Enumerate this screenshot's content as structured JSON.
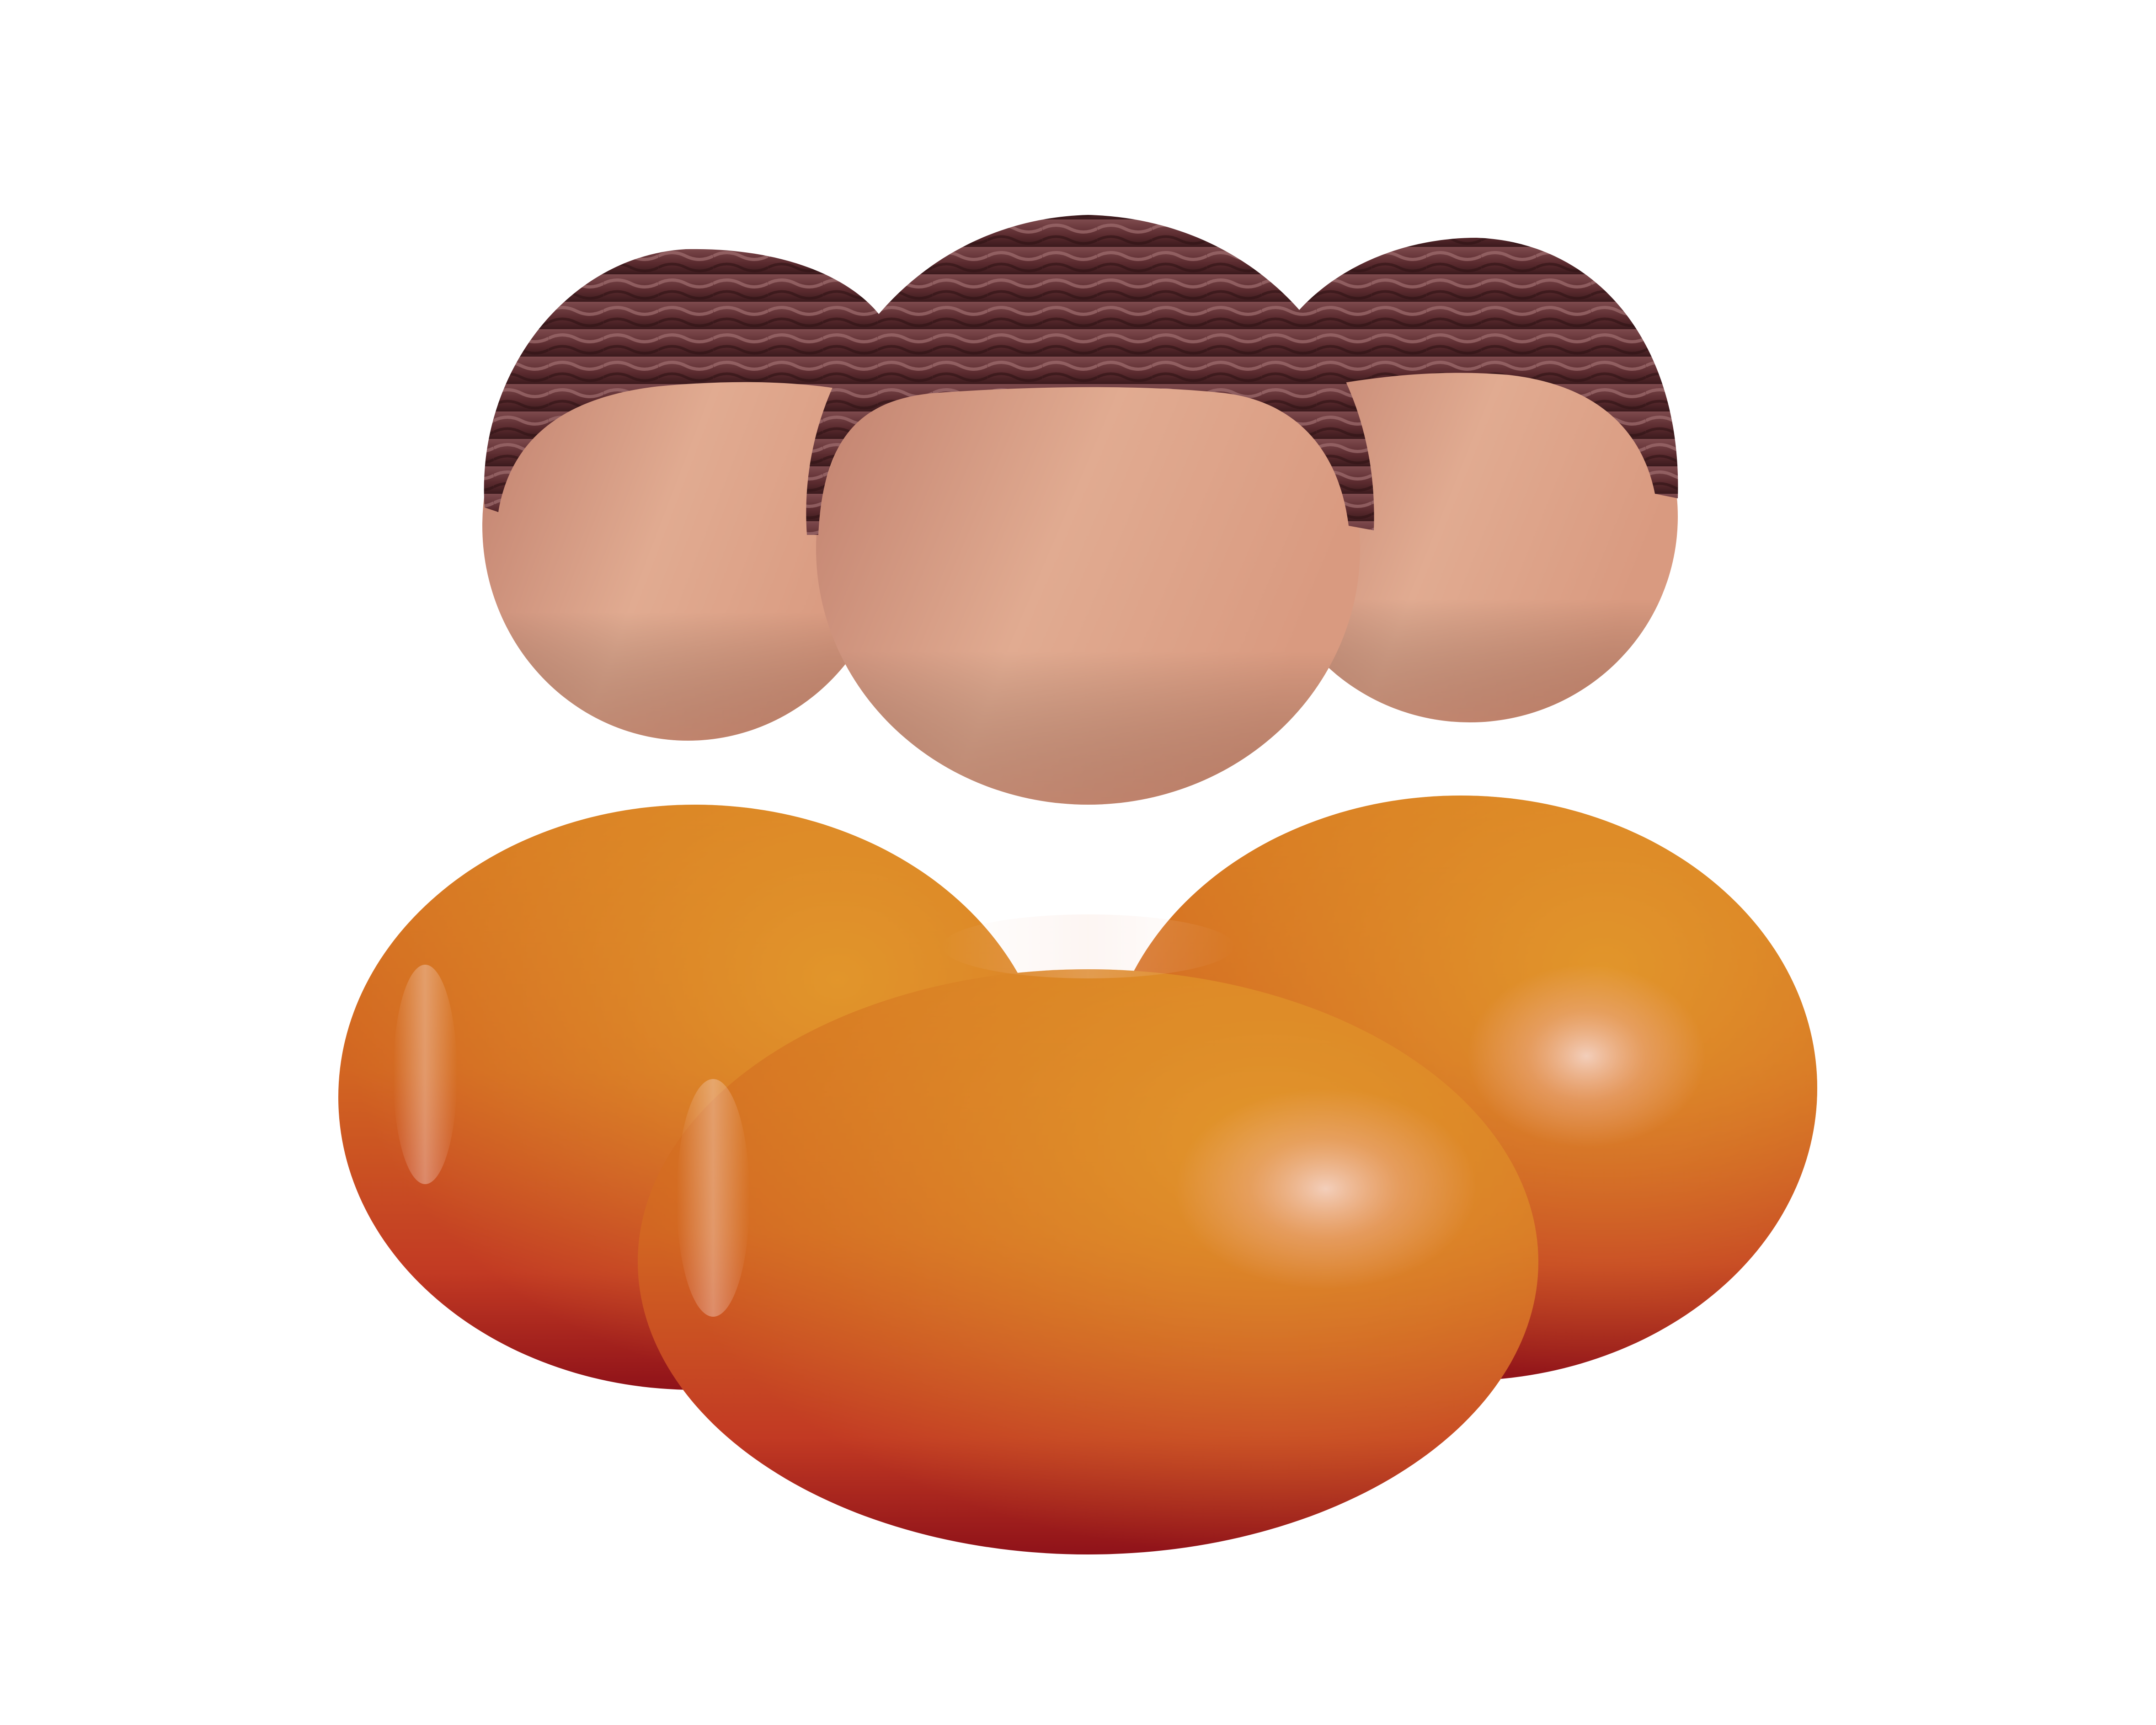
{
  "illustration": {
    "subject": "three-person-group-icon",
    "people": [
      {
        "id": "left-person",
        "icon": "person-icon"
      },
      {
        "id": "right-person",
        "icon": "person-icon"
      },
      {
        "id": "center-person",
        "icon": "person-icon"
      }
    ],
    "colors": {
      "background": "#ffffff",
      "skin_light": "#e2ad93",
      "skin_mid": "#d9967a",
      "skin_dark": "#bd7d69",
      "hair_light": "#7a4146",
      "hair_dark": "#3f1c1f",
      "body_top": "#de8a25",
      "body_mid": "#cf5a20",
      "body_bottom": "#a51a1f",
      "highlight": "#f3d1c1"
    }
  }
}
